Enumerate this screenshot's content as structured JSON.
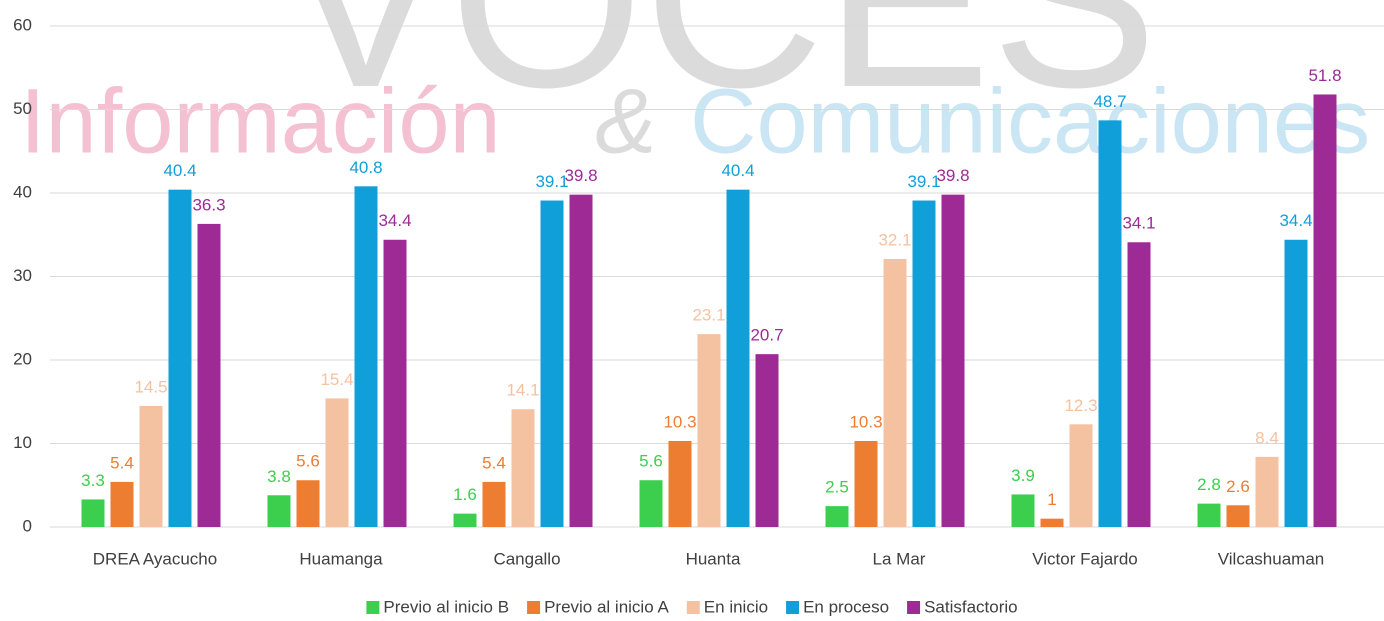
{
  "chart_data": {
    "type": "bar",
    "watermark": {
      "brand": "VOCES",
      "left": "Información",
      "amp": "&",
      "right": "Comunicaciones"
    },
    "categories": [
      "DREA Ayacucho",
      "Huamanga",
      "Cangallo",
      "Huanta",
      "La Mar",
      "Victor Fajardo",
      "Vilcashuaman"
    ],
    "series": [
      {
        "name": "Previo al inicio B",
        "color": "#3ccf4e",
        "values": [
          3.3,
          3.8,
          1.6,
          5.6,
          2.5,
          3.9,
          2.8
        ]
      },
      {
        "name": "Previo al inicio A",
        "color": "#ed7d31",
        "values": [
          5.4,
          5.6,
          5.4,
          10.3,
          10.3,
          1,
          2.6
        ]
      },
      {
        "name": "En inicio",
        "color": "#f4c2a1",
        "values": [
          14.5,
          15.4,
          14.1,
          23.1,
          32.1,
          12.3,
          8.4
        ]
      },
      {
        "name": "En proceso",
        "color": "#119fd9",
        "values": [
          40.4,
          40.8,
          39.1,
          40.4,
          39.1,
          48.7,
          34.4
        ]
      },
      {
        "name": "Satisfactorio",
        "color": "#9e2a96",
        "values": [
          36.3,
          34.4,
          39.8,
          20.7,
          39.8,
          34.1,
          51.8
        ]
      }
    ],
    "ylim": [
      0,
      60
    ],
    "yticks": [
      0,
      10,
      20,
      30,
      40,
      50,
      60
    ],
    "grid": true,
    "legend": "bottom"
  }
}
